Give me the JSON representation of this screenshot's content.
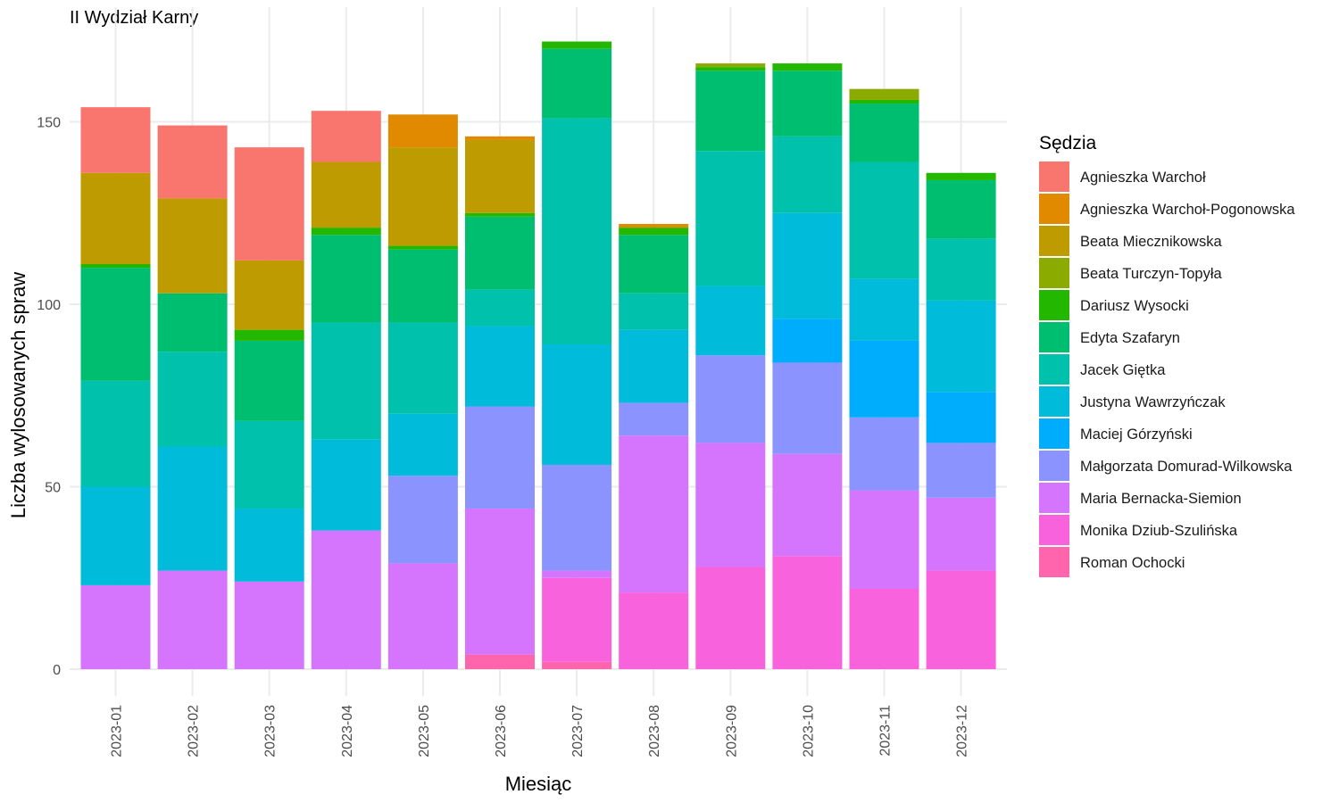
{
  "chart_data": {
    "type": "bar",
    "stacked": true,
    "title": "II Wydział Karny",
    "xlabel": "Miesiąc",
    "ylabel": "Liczba wylosowanych spraw",
    "ylim": [
      0,
      172
    ],
    "yticks": [
      0,
      50,
      100,
      150
    ],
    "grid": true,
    "legend": {
      "title": "Sędzia",
      "position": "right"
    },
    "categories": [
      "2023-01",
      "2023-02",
      "2023-03",
      "2023-04",
      "2023-05",
      "2023-06",
      "2023-07",
      "2023-08",
      "2023-09",
      "2023-10",
      "2023-11",
      "2023-12"
    ],
    "series": [
      {
        "name": "Agnieszka Warchoł",
        "color": "#F8766D",
        "values": [
          18,
          20,
          31,
          14,
          0,
          0,
          0,
          0,
          0,
          0,
          0,
          0
        ]
      },
      {
        "name": "Agnieszka Warchoł-Pogonowska",
        "color": "#E18A00",
        "values": [
          0,
          0,
          0,
          0,
          9,
          1,
          0,
          1,
          0,
          0,
          0,
          0
        ]
      },
      {
        "name": "Beata Miecznikowska",
        "color": "#BE9C00",
        "values": [
          25,
          26,
          19,
          18,
          27,
          20,
          0,
          0,
          0,
          0,
          0,
          0
        ]
      },
      {
        "name": "Beata Turczyn-Topyła",
        "color": "#8CAB00",
        "values": [
          0,
          0,
          0,
          0,
          0,
          0,
          0,
          0,
          1,
          0,
          3,
          0
        ]
      },
      {
        "name": "Dariusz Wysocki",
        "color": "#24B700",
        "values": [
          1,
          0,
          3,
          2,
          1,
          1,
          2,
          2,
          1,
          2,
          1,
          2
        ]
      },
      {
        "name": "Edyta Szafaryn",
        "color": "#00BE70",
        "values": [
          31,
          16,
          22,
          24,
          20,
          20,
          19,
          16,
          22,
          18,
          16,
          16
        ]
      },
      {
        "name": "Jacek Giętka",
        "color": "#00C1AB",
        "values": [
          29,
          26,
          24,
          32,
          25,
          10,
          62,
          10,
          37,
          21,
          32,
          17
        ]
      },
      {
        "name": "Justyna Wawrzyńczak",
        "color": "#00BBDA",
        "values": [
          27,
          34,
          20,
          25,
          17,
          22,
          33,
          20,
          19,
          29,
          17,
          25
        ]
      },
      {
        "name": "Maciej Górzyński",
        "color": "#00ACFC",
        "values": [
          0,
          0,
          0,
          0,
          0,
          0,
          0,
          0,
          0,
          12,
          21,
          14
        ]
      },
      {
        "name": "Małgorzata Domurad-Wilkowska",
        "color": "#8B93FF",
        "values": [
          0,
          0,
          0,
          0,
          24,
          28,
          29,
          9,
          24,
          25,
          20,
          15
        ]
      },
      {
        "name": "Maria Bernacka-Siemion",
        "color": "#D575FE",
        "values": [
          23,
          27,
          24,
          38,
          29,
          40,
          2,
          43,
          34,
          28,
          27,
          20
        ]
      },
      {
        "name": "Monika Dziub-Szulińska",
        "color": "#F962DD",
        "values": [
          0,
          0,
          0,
          0,
          0,
          0,
          23,
          21,
          28,
          31,
          22,
          27
        ]
      },
      {
        "name": "Roman Ochocki",
        "color": "#FF65AC",
        "values": [
          0,
          0,
          0,
          0,
          0,
          4,
          2,
          0,
          0,
          0,
          0,
          0
        ]
      }
    ]
  }
}
